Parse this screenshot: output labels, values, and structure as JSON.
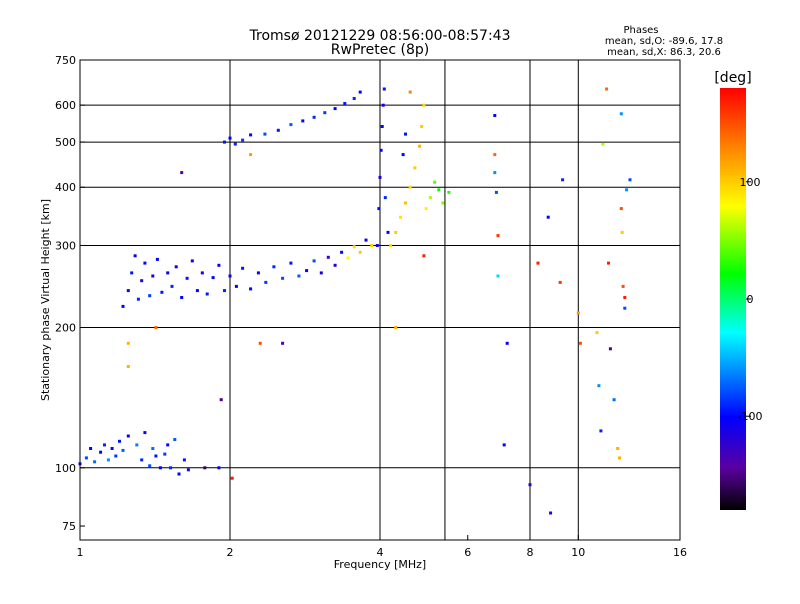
{
  "header": {
    "title": "Tromsø 20121229 08:56:00-08:57:43",
    "subtitle": "RwPretec (8p)"
  },
  "stats": {
    "heading": "Phases",
    "line_o": "mean, sd,O: -89.6, 17.8",
    "line_x": "mean, sd,X: 86.3, 20.6"
  },
  "colorbar": {
    "unit": "[deg]",
    "ticks": [
      {
        "value": 100,
        "label": "100"
      },
      {
        "value": 0,
        "label": "0"
      },
      {
        "value": -100,
        "label": "-100"
      }
    ],
    "range": [
      -180,
      180
    ]
  },
  "chart_data": {
    "type": "scatter",
    "title": "Tromsø 20121229 08:56:00-08:57:43",
    "subtitle": "RwPretec (8p)",
    "xlabel": "Frequency [MHz]",
    "ylabel": "Stationary phase Virtual Height [km]",
    "xscale": "log2",
    "yscale": "log",
    "xlim": [
      1,
      16
    ],
    "ylim": [
      70,
      750
    ],
    "grid": true,
    "x_ticks": [
      {
        "value": 1,
        "label": "1"
      },
      {
        "value": 2,
        "label": "2"
      },
      {
        "value": 4,
        "label": "4"
      },
      {
        "value": 6,
        "label": "6"
      },
      {
        "value": 8,
        "label": "8"
      },
      {
        "value": 10,
        "label": "10"
      },
      {
        "value": 16,
        "label": "16"
      }
    ],
    "y_ticks": [
      {
        "value": 75,
        "label": "75"
      },
      {
        "value": 100,
        "label": "100"
      },
      {
        "value": 200,
        "label": "200"
      },
      {
        "value": 300,
        "label": "300"
      },
      {
        "value": 400,
        "label": "400"
      },
      {
        "value": 500,
        "label": "500"
      },
      {
        "value": 600,
        "label": "600"
      },
      {
        "value": 750,
        "label": "750"
      }
    ],
    "x_grid": [
      2,
      4,
      5.4,
      8,
      10
    ],
    "y_grid": [
      100,
      200,
      300,
      400,
      500,
      600
    ],
    "color_scale": "phase in degrees, rainbow from black (-180) through blue (-100), cyan, green (0), yellow (100) to red (180)",
    "points": [
      {
        "x": 1.0,
        "y": 102,
        "phase": -95
      },
      {
        "x": 1.03,
        "y": 105,
        "phase": -80
      },
      {
        "x": 1.05,
        "y": 110,
        "phase": -100
      },
      {
        "x": 1.07,
        "y": 103,
        "phase": -70
      },
      {
        "x": 1.1,
        "y": 108,
        "phase": -105
      },
      {
        "x": 1.12,
        "y": 112,
        "phase": -90
      },
      {
        "x": 1.14,
        "y": 104,
        "phase": -60
      },
      {
        "x": 1.16,
        "y": 110,
        "phase": -110
      },
      {
        "x": 1.18,
        "y": 106,
        "phase": -85
      },
      {
        "x": 1.2,
        "y": 114,
        "phase": -95
      },
      {
        "x": 1.22,
        "y": 109,
        "phase": -75
      },
      {
        "x": 1.25,
        "y": 117,
        "phase": -100
      },
      {
        "x": 1.3,
        "y": 112,
        "phase": -65
      },
      {
        "x": 1.33,
        "y": 104,
        "phase": -90
      },
      {
        "x": 1.35,
        "y": 119,
        "phase": -105
      },
      {
        "x": 1.38,
        "y": 101,
        "phase": -80
      },
      {
        "x": 1.4,
        "y": 110,
        "phase": -70
      },
      {
        "x": 1.42,
        "y": 106,
        "phase": -95
      },
      {
        "x": 1.45,
        "y": 100,
        "phase": -100
      },
      {
        "x": 1.48,
        "y": 107,
        "phase": -85
      },
      {
        "x": 1.5,
        "y": 112,
        "phase": -110
      },
      {
        "x": 1.52,
        "y": 100,
        "phase": -90
      },
      {
        "x": 1.55,
        "y": 115,
        "phase": -75
      },
      {
        "x": 1.58,
        "y": 97,
        "phase": -100
      },
      {
        "x": 1.62,
        "y": 104,
        "phase": -95
      },
      {
        "x": 1.65,
        "y": 99,
        "phase": -115
      },
      {
        "x": 1.9,
        "y": 100,
        "phase": -105
      },
      {
        "x": 1.22,
        "y": 222,
        "phase": -100
      },
      {
        "x": 1.25,
        "y": 240,
        "phase": -110
      },
      {
        "x": 1.27,
        "y": 262,
        "phase": -95
      },
      {
        "x": 1.29,
        "y": 285,
        "phase": -105
      },
      {
        "x": 1.31,
        "y": 230,
        "phase": -90
      },
      {
        "x": 1.33,
        "y": 252,
        "phase": -115
      },
      {
        "x": 1.35,
        "y": 275,
        "phase": -100
      },
      {
        "x": 1.38,
        "y": 234,
        "phase": -85
      },
      {
        "x": 1.4,
        "y": 258,
        "phase": -110
      },
      {
        "x": 1.43,
        "y": 280,
        "phase": -100
      },
      {
        "x": 1.46,
        "y": 238,
        "phase": -95
      },
      {
        "x": 1.5,
        "y": 262,
        "phase": -105
      },
      {
        "x": 1.53,
        "y": 245,
        "phase": -90
      },
      {
        "x": 1.56,
        "y": 270,
        "phase": -110
      },
      {
        "x": 1.6,
        "y": 232,
        "phase": -100
      },
      {
        "x": 1.64,
        "y": 255,
        "phase": -95
      },
      {
        "x": 1.68,
        "y": 278,
        "phase": -105
      },
      {
        "x": 1.72,
        "y": 240,
        "phase": -100
      },
      {
        "x": 1.76,
        "y": 262,
        "phase": -110
      },
      {
        "x": 1.8,
        "y": 236,
        "phase": -95
      },
      {
        "x": 1.85,
        "y": 256,
        "phase": -100
      },
      {
        "x": 1.9,
        "y": 272,
        "phase": -105
      },
      {
        "x": 1.95,
        "y": 240,
        "phase": -90
      },
      {
        "x": 2.0,
        "y": 258,
        "phase": -110
      },
      {
        "x": 2.06,
        "y": 245,
        "phase": -100
      },
      {
        "x": 2.12,
        "y": 268,
        "phase": -95
      },
      {
        "x": 2.2,
        "y": 242,
        "phase": -100
      },
      {
        "x": 2.28,
        "y": 262,
        "phase": -105
      },
      {
        "x": 2.36,
        "y": 250,
        "phase": -85
      },
      {
        "x": 2.45,
        "y": 270,
        "phase": -90
      },
      {
        "x": 2.55,
        "y": 255,
        "phase": -80
      },
      {
        "x": 2.65,
        "y": 275,
        "phase": -95
      },
      {
        "x": 2.75,
        "y": 258,
        "phase": -75
      },
      {
        "x": 2.85,
        "y": 265,
        "phase": -100
      },
      {
        "x": 2.95,
        "y": 278,
        "phase": -80
      },
      {
        "x": 3.05,
        "y": 262,
        "phase": -110
      },
      {
        "x": 3.15,
        "y": 283,
        "phase": -130
      },
      {
        "x": 3.25,
        "y": 272,
        "phase": -120
      },
      {
        "x": 3.35,
        "y": 290,
        "phase": -100
      },
      {
        "x": 3.45,
        "y": 282,
        "phase": 80
      },
      {
        "x": 3.55,
        "y": 298,
        "phase": 90
      },
      {
        "x": 3.65,
        "y": 290,
        "phase": 100
      },
      {
        "x": 3.75,
        "y": 308,
        "phase": -110
      },
      {
        "x": 3.85,
        "y": 300,
        "phase": 95
      },
      {
        "x": 1.95,
        "y": 500,
        "phase": -95
      },
      {
        "x": 2.0,
        "y": 510,
        "phase": -100
      },
      {
        "x": 2.05,
        "y": 495,
        "phase": -90
      },
      {
        "x": 2.12,
        "y": 505,
        "phase": -85
      },
      {
        "x": 2.2,
        "y": 518,
        "phase": -100
      },
      {
        "x": 2.35,
        "y": 520,
        "phase": -80
      },
      {
        "x": 2.5,
        "y": 530,
        "phase": -95
      },
      {
        "x": 2.65,
        "y": 545,
        "phase": -75
      },
      {
        "x": 2.8,
        "y": 555,
        "phase": -100
      },
      {
        "x": 2.95,
        "y": 565,
        "phase": -90
      },
      {
        "x": 3.1,
        "y": 578,
        "phase": -85
      },
      {
        "x": 3.25,
        "y": 590,
        "phase": -100
      },
      {
        "x": 3.4,
        "y": 605,
        "phase": -95
      },
      {
        "x": 3.55,
        "y": 620,
        "phase": -90
      },
      {
        "x": 3.65,
        "y": 640,
        "phase": -105
      },
      {
        "x": 3.95,
        "y": 300,
        "phase": -110
      },
      {
        "x": 3.98,
        "y": 360,
        "phase": -100
      },
      {
        "x": 4.0,
        "y": 420,
        "phase": -115
      },
      {
        "x": 4.02,
        "y": 480,
        "phase": -105
      },
      {
        "x": 4.04,
        "y": 540,
        "phase": -100
      },
      {
        "x": 4.06,
        "y": 600,
        "phase": -110
      },
      {
        "x": 4.08,
        "y": 650,
        "phase": -95
      },
      {
        "x": 4.1,
        "y": 380,
        "phase": -90
      },
      {
        "x": 4.15,
        "y": 320,
        "phase": -100
      },
      {
        "x": 4.2,
        "y": 300,
        "phase": 95
      },
      {
        "x": 4.3,
        "y": 320,
        "phase": 100
      },
      {
        "x": 4.4,
        "y": 345,
        "phase": 90
      },
      {
        "x": 4.5,
        "y": 370,
        "phase": 105
      },
      {
        "x": 4.6,
        "y": 400,
        "phase": 95
      },
      {
        "x": 4.7,
        "y": 440,
        "phase": 100
      },
      {
        "x": 4.8,
        "y": 490,
        "phase": 110
      },
      {
        "x": 4.85,
        "y": 540,
        "phase": 100
      },
      {
        "x": 4.9,
        "y": 600,
        "phase": 95
      },
      {
        "x": 4.95,
        "y": 360,
        "phase": 85
      },
      {
        "x": 5.05,
        "y": 380,
        "phase": 60
      },
      {
        "x": 5.15,
        "y": 410,
        "phase": 40
      },
      {
        "x": 5.25,
        "y": 395,
        "phase": 20
      },
      {
        "x": 5.35,
        "y": 370,
        "phase": 50
      },
      {
        "x": 5.5,
        "y": 390,
        "phase": 30
      },
      {
        "x": 4.45,
        "y": 470,
        "phase": -100
      },
      {
        "x": 4.5,
        "y": 520,
        "phase": -95
      },
      {
        "x": 4.6,
        "y": 640,
        "phase": 130
      },
      {
        "x": 6.8,
        "y": 570,
        "phase": -100
      },
      {
        "x": 6.8,
        "y": 470,
        "phase": 140
      },
      {
        "x": 6.8,
        "y": 430,
        "phase": -60
      },
      {
        "x": 6.85,
        "y": 390,
        "phase": -80
      },
      {
        "x": 6.9,
        "y": 315,
        "phase": 160
      },
      {
        "x": 6.9,
        "y": 258,
        "phase": -40
      },
      {
        "x": 7.2,
        "y": 185,
        "phase": -100
      },
      {
        "x": 7.1,
        "y": 112,
        "phase": -100
      },
      {
        "x": 8.0,
        "y": 92,
        "phase": -120
      },
      {
        "x": 8.3,
        "y": 275,
        "phase": 170
      },
      {
        "x": 8.7,
        "y": 345,
        "phase": -100
      },
      {
        "x": 8.8,
        "y": 80,
        "phase": -120
      },
      {
        "x": 9.2,
        "y": 250,
        "phase": 160
      },
      {
        "x": 9.3,
        "y": 415,
        "phase": -90
      },
      {
        "x": 10.0,
        "y": 215,
        "phase": 120
      },
      {
        "x": 10.1,
        "y": 185,
        "phase": 150
      },
      {
        "x": 10.9,
        "y": 195,
        "phase": 100
      },
      {
        "x": 11.0,
        "y": 150,
        "phase": -60
      },
      {
        "x": 11.1,
        "y": 120,
        "phase": -90
      },
      {
        "x": 11.2,
        "y": 495,
        "phase": 60
      },
      {
        "x": 11.5,
        "y": 275,
        "phase": 170
      },
      {
        "x": 11.6,
        "y": 180,
        "phase": -150
      },
      {
        "x": 11.8,
        "y": 140,
        "phase": -70
      },
      {
        "x": 12.0,
        "y": 110,
        "phase": 110
      },
      {
        "x": 12.1,
        "y": 105,
        "phase": 110
      },
      {
        "x": 12.2,
        "y": 575,
        "phase": -60
      },
      {
        "x": 12.2,
        "y": 360,
        "phase": 150
      },
      {
        "x": 12.25,
        "y": 320,
        "phase": 100
      },
      {
        "x": 12.3,
        "y": 245,
        "phase": 150
      },
      {
        "x": 12.4,
        "y": 232,
        "phase": 170
      },
      {
        "x": 12.4,
        "y": 220,
        "phase": -80
      },
      {
        "x": 12.5,
        "y": 395,
        "phase": -60
      },
      {
        "x": 12.7,
        "y": 415,
        "phase": -80
      },
      {
        "x": 11.4,
        "y": 650,
        "phase": 140
      },
      {
        "x": 1.25,
        "y": 185,
        "phase": 110
      },
      {
        "x": 1.25,
        "y": 165,
        "phase": 110
      },
      {
        "x": 1.42,
        "y": 200,
        "phase": 140
      },
      {
        "x": 1.6,
        "y": 430,
        "phase": -140
      },
      {
        "x": 1.78,
        "y": 100,
        "phase": -160
      },
      {
        "x": 1.92,
        "y": 140,
        "phase": -150
      },
      {
        "x": 2.02,
        "y": 95,
        "phase": 170
      },
      {
        "x": 2.3,
        "y": 185,
        "phase": 150
      },
      {
        "x": 2.55,
        "y": 185,
        "phase": -140
      },
      {
        "x": 2.2,
        "y": 470,
        "phase": 120
      },
      {
        "x": 4.3,
        "y": 200,
        "phase": 110
      },
      {
        "x": 4.9,
        "y": 285,
        "phase": 170
      }
    ]
  }
}
